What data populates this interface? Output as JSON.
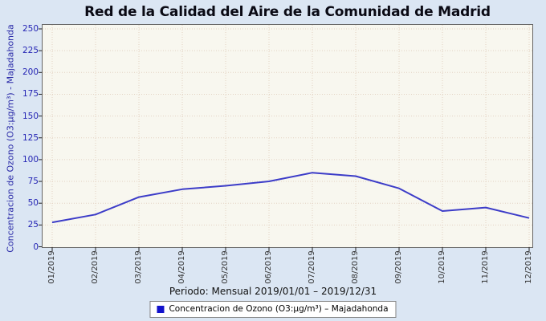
{
  "title": "Red de la Calidad del Aire de la Comunidad de Madrid",
  "chart_data": {
    "type": "line",
    "title": "Red de la Calidad del Aire de la Comunidad de Madrid",
    "categories": [
      "01/2019",
      "02/2019",
      "03/2019",
      "04/2019",
      "05/2019",
      "06/2019",
      "07/2019",
      "08/2019",
      "09/2019",
      "10/2019",
      "11/2019",
      "12/2019"
    ],
    "series": [
      {
        "name": "Concentracion de Ozono (O3:µg/m³) – Majadahonda",
        "color": "#3c3cc8",
        "values": [
          28,
          37,
          57,
          66,
          70,
          75,
          85,
          81,
          67,
          41,
          45,
          33
        ]
      }
    ],
    "xlabel": "",
    "ylabel": "Concentracion de Ozono (O3:µg/m³) - Majadahonda",
    "ylim": [
      0,
      250
    ],
    "ytick_step": 25,
    "grid": true,
    "legend_position": "bottom"
  },
  "footer": {
    "period_label": "Periodo: Mensual 2019/01/01 – 2019/12/31"
  },
  "legend": {
    "marker_color": "#1212cc",
    "label": "Concentracion de Ozono (O3:µg/m³) – Majadahonda"
  },
  "colors": {
    "page_bg": "#dbe6f3",
    "plot_bg": "#f8f7ef",
    "grid": "#e2d2c2",
    "line": "#3c3cc8",
    "y_tick_text": "#2424b4",
    "x_tick_text": "#333333",
    "axis_border": "#666666",
    "tick_mark": "#222222"
  }
}
